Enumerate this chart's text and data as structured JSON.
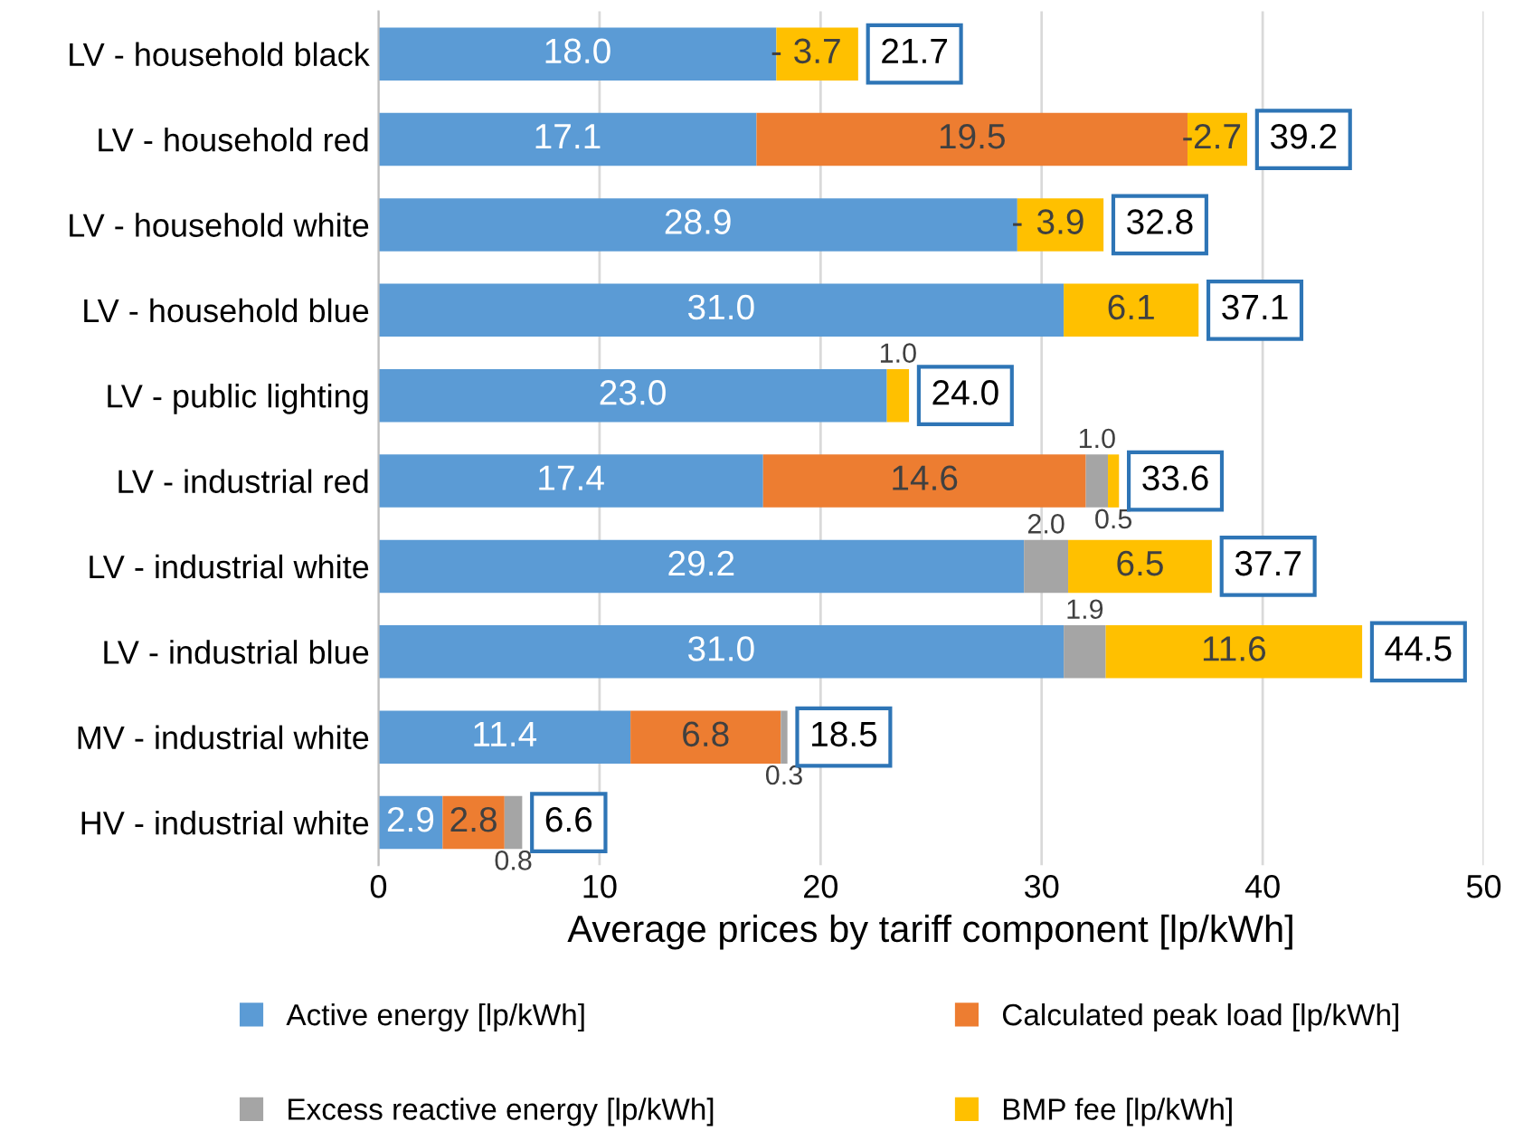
{
  "chart_data": {
    "type": "bar",
    "orientation": "horizontal",
    "stacked": true,
    "categories": [
      "LV - household black",
      "LV - household red",
      "LV - household white",
      "LV - household blue",
      "LV - public lighting",
      "LV - industrial red",
      "LV - industrial white",
      "LV - industrial blue",
      "MV - industrial white",
      "HV - industrial white"
    ],
    "series": [
      {
        "name": "Active energy [lp/kWh]",
        "color": "#5b9bd5",
        "values": [
          18.0,
          17.1,
          28.9,
          31.0,
          23.0,
          17.4,
          29.2,
          31.0,
          11.4,
          2.9
        ],
        "value_labels": [
          "18.0",
          "17.1",
          "28.9",
          "31.0",
          "23.0",
          "17.4",
          "29.2",
          "31.0",
          "11.4",
          "2.9"
        ]
      },
      {
        "name": "Calculated peak load [lp/kWh]",
        "color": "#ed7d31",
        "values": [
          0,
          19.5,
          0,
          0,
          0,
          14.6,
          0,
          0,
          6.8,
          2.8
        ],
        "value_labels": [
          "-",
          "19.5",
          "-",
          null,
          null,
          "14.6",
          null,
          null,
          "6.8",
          "2.8"
        ]
      },
      {
        "name": "Excess reactive energy [lp/kWh]",
        "color": "#a5a5a5",
        "values": [
          0,
          0,
          0,
          0,
          0,
          1.0,
          2.0,
          1.9,
          0.3,
          0.8
        ],
        "value_labels": [
          null,
          "-",
          null,
          null,
          null,
          "1.0",
          "2.0",
          "1.9",
          "0.3",
          "0.8"
        ]
      },
      {
        "name": "BMP fee [lp/kWh]",
        "color": "#ffc000",
        "values": [
          3.7,
          2.7,
          3.9,
          6.1,
          1.0,
          0.5,
          6.5,
          11.6,
          0,
          0
        ],
        "value_labels": [
          "3.7",
          "2.7",
          "3.9",
          "6.1",
          "1.0",
          "0.5",
          "6.5",
          "11.6",
          null,
          null
        ]
      }
    ],
    "totals": [
      "21.7",
      "39.2",
      "32.8",
      "37.1",
      "24.0",
      "33.6",
      "37.7",
      "44.5",
      "18.5",
      "6.6"
    ],
    "xlabel": "Average prices by tariff component [lp/kWh]",
    "xlim": [
      0,
      50
    ],
    "xticks": [
      0,
      10,
      20,
      30,
      40,
      50
    ],
    "grid": "x",
    "legend": "bottom"
  }
}
